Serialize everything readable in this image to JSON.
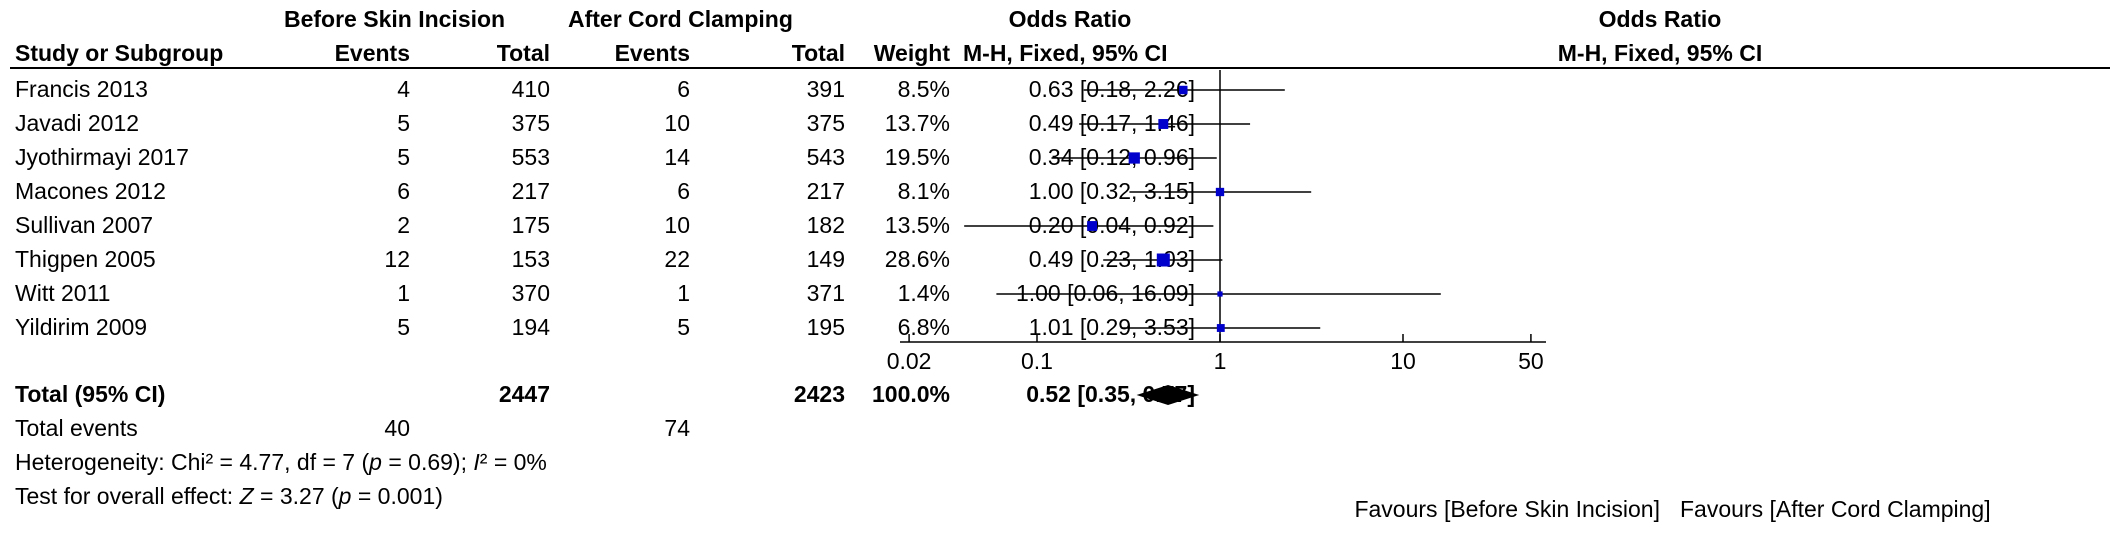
{
  "headers": {
    "group_experimental": "Before Skin Incision",
    "group_control": "After Cord Clamping",
    "odds_ratio": "Odds Ratio",
    "study": "Study or Subgroup",
    "events1": "Events",
    "total1": "Total",
    "events2": "Events",
    "total2": "Total",
    "weight": "Weight",
    "method": "M-H, Fixed, 95% CI",
    "plot_title": "Odds Ratio",
    "plot_method": "M-H, Fixed, 95% CI"
  },
  "studies": [
    {
      "name": "Francis 2013",
      "e1": "4",
      "n1": "410",
      "e2": "6",
      "n2": "391",
      "weight": "8.5%",
      "ci_text": "0.63 [0.18, 2.26]"
    },
    {
      "name": "Javadi 2012",
      "e1": "5",
      "n1": "375",
      "e2": "10",
      "n2": "375",
      "weight": "13.7%",
      "ci_text": "0.49 [0.17, 1.46]"
    },
    {
      "name": "Jyothirmayi 2017",
      "e1": "5",
      "n1": "553",
      "e2": "14",
      "n2": "543",
      "weight": "19.5%",
      "ci_text": "0.34 [0.12, 0.96]"
    },
    {
      "name": "Macones 2012",
      "e1": "6",
      "n1": "217",
      "e2": "6",
      "n2": "217",
      "weight": "8.1%",
      "ci_text": "1.00 [0.32, 3.15]"
    },
    {
      "name": "Sullivan 2007",
      "e1": "2",
      "n1": "175",
      "e2": "10",
      "n2": "182",
      "weight": "13.5%",
      "ci_text": "0.20 [0.04, 0.92]"
    },
    {
      "name": "Thigpen 2005",
      "e1": "12",
      "n1": "153",
      "e2": "22",
      "n2": "149",
      "weight": "28.6%",
      "ci_text": "0.49 [0.23, 1.03]"
    },
    {
      "name": "Witt 2011",
      "e1": "1",
      "n1": "370",
      "e2": "1",
      "n2": "371",
      "weight": "1.4%",
      "ci_text": "1.00 [0.06, 16.09]"
    },
    {
      "name": "Yildirim 2009",
      "e1": "5",
      "n1": "194",
      "e2": "5",
      "n2": "195",
      "weight": "6.8%",
      "ci_text": "1.01 [0.29, 3.53]"
    }
  ],
  "total": {
    "label": "Total (95% CI)",
    "n1": "2447",
    "n2": "2423",
    "weight": "100.0%",
    "ci_text": "0.52 [0.35, 0.77]"
  },
  "total_events": {
    "label": "Total events",
    "e1": "40",
    "e2": "74"
  },
  "heterogeneity": {
    "prefix": "Heterogeneity: Chi² = 4.77, df = 7 (",
    "p_sym": "p",
    "middle": " = 0.69); ",
    "i_sym": "I",
    "suffix": "² = 0%"
  },
  "overall_effect": {
    "prefix": "Test for overall effect: ",
    "z_sym": "Z",
    "middle": " = 3.27 (",
    "p_sym": "p",
    "suffix": " = 0.001)"
  },
  "axis": {
    "tick_labels": [
      "0.02",
      "0.1",
      "1",
      "10",
      "50"
    ],
    "favours_left": "Favours [Before Skin Incision]",
    "favours_right": "Favours [After Cord Clamping]"
  },
  "colors": {
    "marker": "#0000cc",
    "line": "#000000",
    "diamond": "#000000"
  },
  "chart_data": {
    "type": "forest",
    "title": "Odds Ratio",
    "subtitle": "M-H, Fixed, 95% CI",
    "x_scale": "log",
    "xlim": [
      0.02,
      50
    ],
    "x_ticks": [
      0.02,
      0.1,
      1,
      10,
      50
    ],
    "reference_line": 1,
    "studies": [
      {
        "name": "Francis 2013",
        "or": 0.63,
        "lower": 0.18,
        "upper": 2.26,
        "weight": 8.5
      },
      {
        "name": "Javadi 2012",
        "or": 0.49,
        "lower": 0.17,
        "upper": 1.46,
        "weight": 13.7
      },
      {
        "name": "Jyothirmayi 2017",
        "or": 0.34,
        "lower": 0.12,
        "upper": 0.96,
        "weight": 19.5
      },
      {
        "name": "Macones 2012",
        "or": 1.0,
        "lower": 0.32,
        "upper": 3.15,
        "weight": 8.1
      },
      {
        "name": "Sullivan 2007",
        "or": 0.2,
        "lower": 0.04,
        "upper": 0.92,
        "weight": 13.5
      },
      {
        "name": "Thigpen 2005",
        "or": 0.49,
        "lower": 0.23,
        "upper": 1.03,
        "weight": 28.6
      },
      {
        "name": "Witt 2011",
        "or": 1.0,
        "lower": 0.06,
        "upper": 16.09,
        "weight": 1.4
      },
      {
        "name": "Yildirim 2009",
        "or": 1.01,
        "lower": 0.29,
        "upper": 3.53,
        "weight": 6.8
      }
    ],
    "pooled": {
      "name": "Total (95% CI)",
      "or": 0.52,
      "lower": 0.35,
      "upper": 0.77
    },
    "xlabel_left": "Favours [Before Skin Incision]",
    "xlabel_right": "Favours [After Cord Clamping]"
  }
}
